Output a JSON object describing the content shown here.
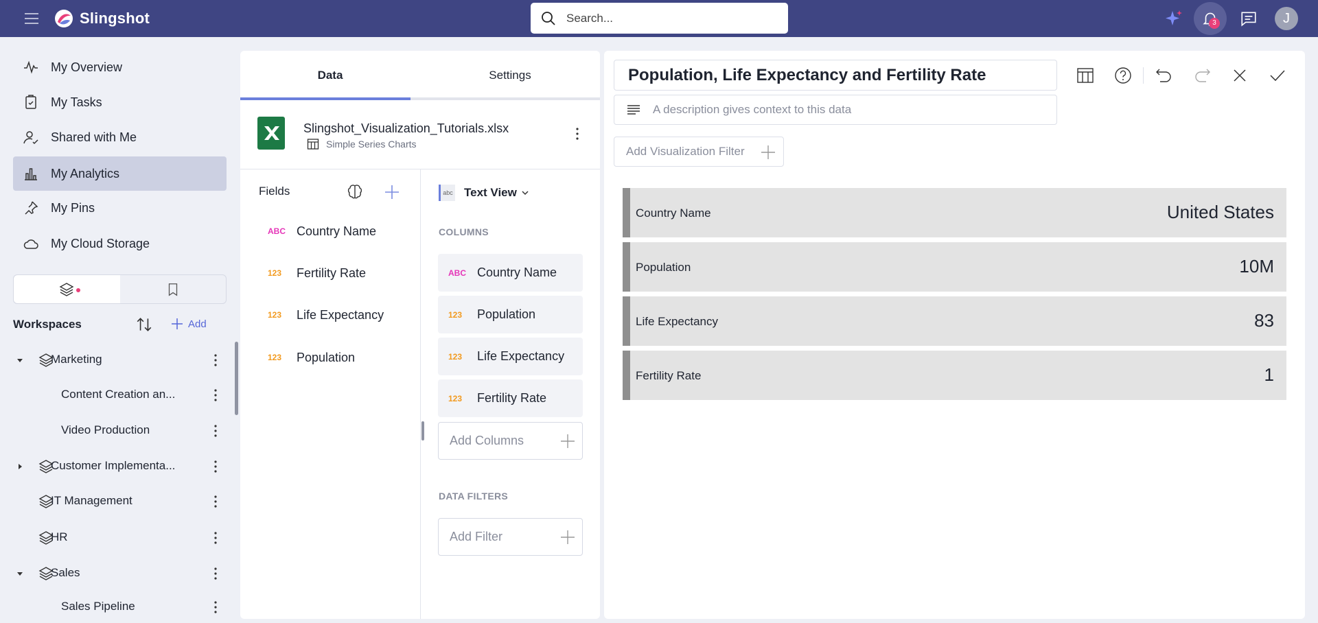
{
  "header": {
    "app_name": "Slingshot",
    "search_placeholder": "Search...",
    "notification_count": "3",
    "avatar_initial": "J"
  },
  "nav": {
    "items": [
      {
        "label": "My Overview",
        "icon": "pulse-icon"
      },
      {
        "label": "My Tasks",
        "icon": "task-icon"
      },
      {
        "label": "Shared with Me",
        "icon": "shared-user-icon"
      },
      {
        "label": "My Analytics",
        "icon": "bar-chart-icon",
        "active": true
      },
      {
        "label": "My Pins",
        "icon": "pin-icon"
      },
      {
        "label": "My Cloud Storage",
        "icon": "cloud-icon"
      }
    ]
  },
  "workspaces": {
    "title": "Workspaces",
    "add_label": "Add",
    "items": [
      {
        "label": "Marketing",
        "level": 0,
        "expanded": true
      },
      {
        "label": "Content Creation an...",
        "level": 1
      },
      {
        "label": "Video Production",
        "level": 1
      },
      {
        "label": "Customer Implementa...",
        "level": 0,
        "expanded": false
      },
      {
        "label": "IT Management",
        "level": 0
      },
      {
        "label": "HR",
        "level": 0
      },
      {
        "label": "Sales",
        "level": 0,
        "expanded": true
      },
      {
        "label": "Sales Pipeline",
        "level": 1
      }
    ]
  },
  "editor": {
    "tabs": [
      "Data",
      "Settings"
    ],
    "active_tab": "Data",
    "file_name": "Slingshot_Visualization_Tutorials.xlsx",
    "sheet_name": "Simple Series Charts",
    "fields_title": "Fields",
    "fields": [
      {
        "type": "ABC",
        "name": "Country Name"
      },
      {
        "type": "123",
        "name": "Fertility Rate"
      },
      {
        "type": "123",
        "name": "Life Expectancy"
      },
      {
        "type": "123",
        "name": "Population"
      }
    ],
    "viz_type_icon": "abc",
    "viz_type": "Text View",
    "columns_label": "COLUMNS",
    "columns": [
      {
        "type": "ABC",
        "name": "Country Name"
      },
      {
        "type": "123",
        "name": "Population"
      },
      {
        "type": "123",
        "name": "Life Expectancy"
      },
      {
        "type": "123",
        "name": "Fertility Rate"
      }
    ],
    "add_columns": "Add Columns",
    "data_filters_label": "DATA FILTERS",
    "add_filter": "Add Filter"
  },
  "visualization": {
    "title": "Population, Life Expectancy and Fertility Rate",
    "description_placeholder": "A description gives context to this data",
    "add_filter_label": "Add Visualization Filter",
    "rows": [
      {
        "label": "Country Name",
        "value": "United States"
      },
      {
        "label": "Population",
        "value": "10M"
      },
      {
        "label": "Life Expectancy",
        "value": "83"
      },
      {
        "label": "Fertility Rate",
        "value": "1"
      }
    ]
  },
  "colors": {
    "topbar": "#3f4583",
    "accent": "#6b7fdc",
    "badge": "#e9407a",
    "text_type": "#e535b8",
    "number_type": "#f29a1f"
  }
}
